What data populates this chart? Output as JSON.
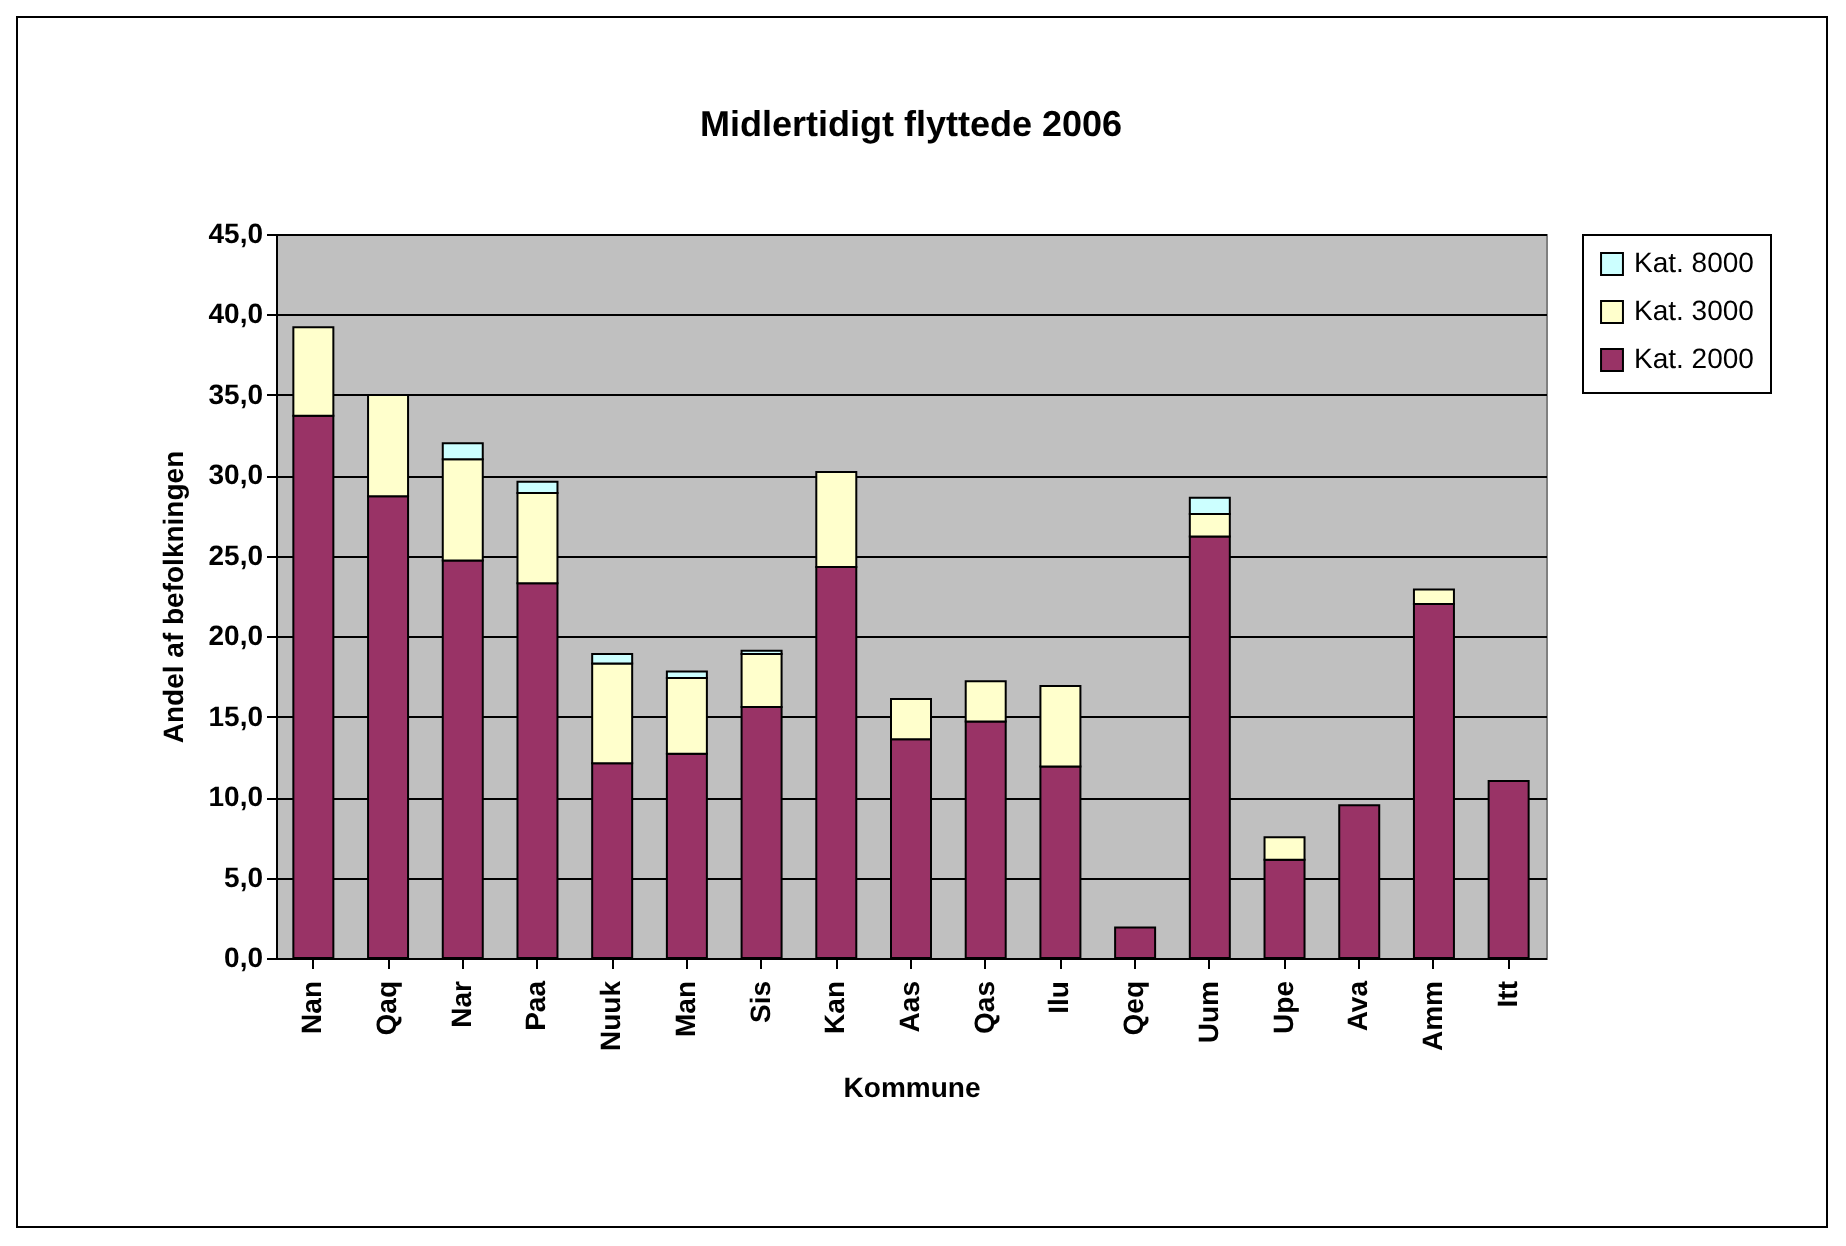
{
  "chart_data": {
    "type": "bar",
    "title": "Midlertidigt flyttede 2006",
    "xlabel": "Kommune",
    "ylabel": "Andel af befolkningen",
    "categories": [
      "Nan",
      "Qaq",
      "Nar",
      "Paa",
      "Nuuk",
      "Man",
      "Sis",
      "Kan",
      "Aas",
      "Qas",
      "Ilu",
      "Qeq",
      "Uum",
      "Upe",
      "Ava",
      "Amm",
      "Itt"
    ],
    "stacked": true,
    "ylim": [
      0,
      45
    ],
    "yticks": [
      {
        "value": 0,
        "label": "0,0"
      },
      {
        "value": 5,
        "label": "5,0"
      },
      {
        "value": 10,
        "label": "10,0"
      },
      {
        "value": 15,
        "label": "15,0"
      },
      {
        "value": 20,
        "label": "20,0"
      },
      {
        "value": 25,
        "label": "25,0"
      },
      {
        "value": 30,
        "label": "30,0"
      },
      {
        "value": 35,
        "label": "35,0"
      },
      {
        "value": 40,
        "label": "40,0"
      },
      {
        "value": 45,
        "label": "45,0"
      }
    ],
    "grid": "y",
    "legend": "right",
    "series": [
      {
        "name": "Kat. 2000",
        "color": "#993366",
        "values": [
          33.7,
          28.7,
          24.7,
          23.3,
          12.1,
          12.7,
          15.6,
          24.3,
          13.6,
          14.7,
          11.9,
          1.9,
          26.2,
          6.1,
          9.5,
          22.0,
          11.0
        ]
      },
      {
        "name": "Kat. 3000",
        "color": "#ffffcc",
        "values": [
          5.5,
          6.3,
          6.3,
          5.6,
          6.2,
          4.7,
          3.3,
          5.9,
          2.5,
          2.5,
          5.0,
          null,
          1.4,
          1.4,
          null,
          0.9,
          null
        ]
      },
      {
        "name": "Kat. 8000",
        "color": "#ccffff",
        "values": [
          null,
          null,
          1.0,
          0.7,
          0.6,
          0.4,
          0.2,
          null,
          null,
          null,
          null,
          null,
          1.0,
          null,
          null,
          null,
          null
        ]
      }
    ]
  }
}
